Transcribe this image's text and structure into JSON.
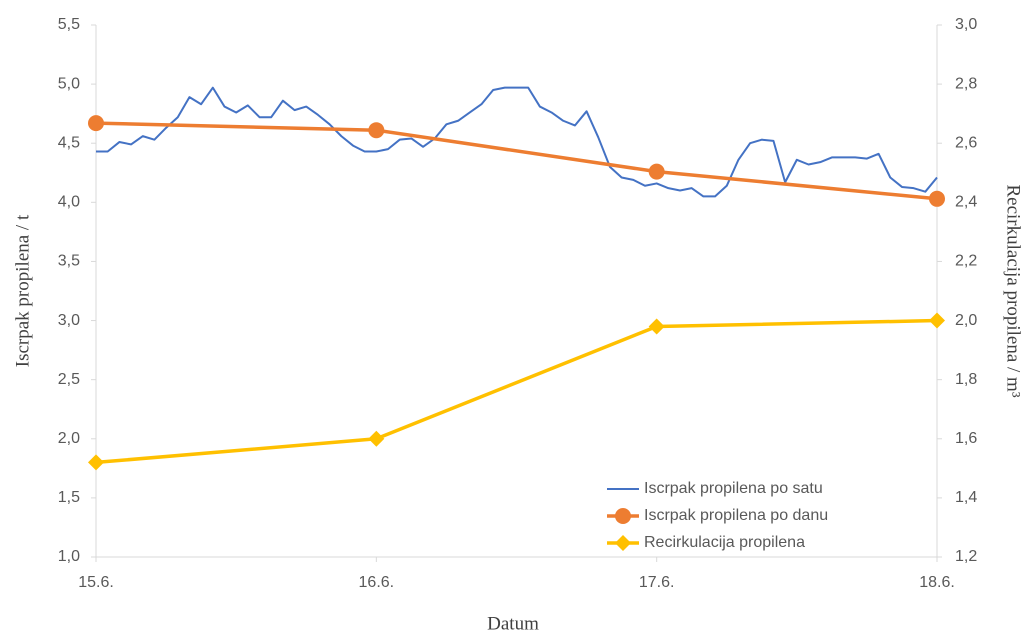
{
  "chart_data": {
    "type": "line",
    "xlabel": "Datum",
    "ylabel": "Iscrpak propilena / t",
    "y2label": "Recirkulacija propilena / m³",
    "xlim": [
      0,
      72
    ],
    "xticks": [
      {
        "value": 0,
        "label": "15.6."
      },
      {
        "value": 24,
        "label": "16.6."
      },
      {
        "value": 48,
        "label": "17.6."
      },
      {
        "value": 72,
        "label": "18.6."
      }
    ],
    "ylim": [
      1.0,
      5.5
    ],
    "yticks": [
      {
        "value": 1.0,
        "label": "1,0"
      },
      {
        "value": 1.5,
        "label": "1,5"
      },
      {
        "value": 2.0,
        "label": "2,0"
      },
      {
        "value": 2.5,
        "label": "2,5"
      },
      {
        "value": 3.0,
        "label": "3,0"
      },
      {
        "value": 3.5,
        "label": "3,5"
      },
      {
        "value": 4.0,
        "label": "4,0"
      },
      {
        "value": 4.5,
        "label": "4,5"
      },
      {
        "value": 5.0,
        "label": "5,0"
      },
      {
        "value": 5.5,
        "label": "5,5"
      }
    ],
    "y2lim": [
      1.2,
      3.0
    ],
    "y2ticks": [
      {
        "value": 1.2,
        "label": "1,2"
      },
      {
        "value": 1.4,
        "label": "1,4"
      },
      {
        "value": 1.6,
        "label": "1,6"
      },
      {
        "value": 1.8,
        "label": "1,8"
      },
      {
        "value": 2.0,
        "label": "2,0"
      },
      {
        "value": 2.2,
        "label": "2,2"
      },
      {
        "value": 2.4,
        "label": "2,4"
      },
      {
        "value": 2.6,
        "label": "2,6"
      },
      {
        "value": 2.8,
        "label": "2,8"
      },
      {
        "value": 3.0,
        "label": "3,0"
      }
    ],
    "grid": false,
    "legend": "lower right",
    "series": [
      {
        "name": "Iscrpak propilena po satu",
        "color": "#4472c4",
        "marker": "none",
        "x": [
          0,
          1,
          2,
          3,
          4,
          5,
          6,
          7,
          8,
          9,
          10,
          11,
          12,
          13,
          14,
          15,
          16,
          17,
          18,
          19,
          20,
          21,
          22,
          23,
          24,
          25,
          26,
          27,
          28,
          29,
          30,
          31,
          32,
          33,
          34,
          35,
          36,
          37,
          38,
          39,
          40,
          41,
          42,
          43,
          44,
          45,
          46,
          47,
          48,
          49,
          50,
          51,
          52,
          53,
          54,
          55,
          56,
          57,
          58,
          59,
          60,
          61,
          62,
          63,
          64,
          65,
          66,
          67,
          68,
          69,
          70,
          71,
          72
        ],
        "values": [
          4.43,
          4.43,
          4.51,
          4.49,
          4.56,
          4.53,
          4.63,
          4.72,
          4.89,
          4.83,
          4.97,
          4.81,
          4.76,
          4.82,
          4.72,
          4.72,
          4.86,
          4.78,
          4.81,
          4.74,
          4.66,
          4.56,
          4.48,
          4.43,
          4.43,
          4.45,
          4.53,
          4.54,
          4.47,
          4.54,
          4.66,
          4.69,
          4.76,
          4.83,
          4.95,
          4.97,
          4.97,
          4.97,
          4.81,
          4.76,
          4.69,
          4.65,
          4.77,
          4.55,
          4.3,
          4.21,
          4.19,
          4.14,
          4.16,
          4.12,
          4.1,
          4.12,
          4.05,
          4.05,
          4.14,
          4.36,
          4.5,
          4.53,
          4.52,
          4.17,
          4.36,
          4.32,
          4.34,
          4.38,
          4.38,
          4.38,
          4.37,
          4.41,
          4.21,
          4.13,
          4.12,
          4.09,
          4.21
        ]
      },
      {
        "name": "Iscrpak propilena po danu",
        "color": "#ed7d31",
        "marker": "circle",
        "x": [
          0,
          24,
          48,
          72
        ],
        "values": [
          4.67,
          4.61,
          4.26,
          4.03
        ]
      },
      {
        "name": "Recirkulacija propilena",
        "color": "#ffc000",
        "marker": "diamond",
        "axis": "y2",
        "x": [
          0,
          24,
          48,
          72
        ],
        "values": [
          1.52,
          1.6,
          1.98,
          2.0
        ]
      }
    ]
  }
}
